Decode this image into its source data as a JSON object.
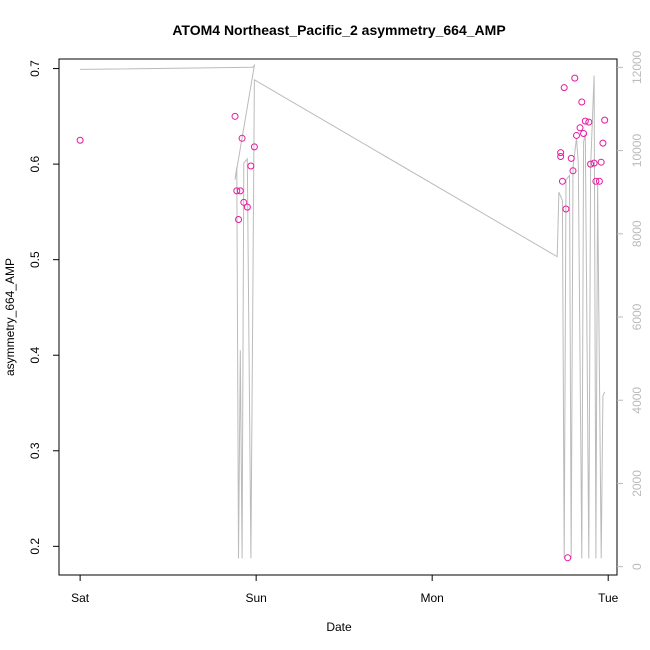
{
  "chart_data": {
    "type": "scatter",
    "title": "ATOM4 Northeast_Pacific_2 asymmetry_664_AMP",
    "xlabel": "Date",
    "ylabel": "asymmetry_664_AMP",
    "x_tick_labels": [
      "Sat",
      "Sun",
      "Mon",
      "Tue"
    ],
    "x_ticks_days": [
      0,
      1,
      2,
      3
    ],
    "xlim_days": [
      -0.12,
      3.05
    ],
    "ylim": [
      0.17,
      0.71
    ],
    "y_ticks": [
      0.2,
      0.3,
      0.4,
      0.5,
      0.6,
      0.7
    ],
    "y2lim": [
      -200,
      12200
    ],
    "y2_ticks": [
      0,
      2000,
      4000,
      6000,
      8000,
      10000,
      12000
    ],
    "colors": {
      "points": "#e6199e",
      "line": "#bbbbbb",
      "axis": "#000000"
    },
    "series": [
      {
        "type": "scatter",
        "x_days": [
          0.0,
          0.88,
          0.89,
          0.9,
          0.91,
          0.92,
          0.93,
          0.95,
          0.97,
          0.99,
          2.73,
          2.73,
          2.74,
          2.75,
          2.76,
          2.77,
          2.79,
          2.8,
          2.81,
          2.82,
          2.84,
          2.85,
          2.86,
          2.87,
          2.89,
          2.9,
          2.92,
          2.93,
          2.95,
          2.96,
          2.97,
          2.98
        ],
        "y": [
          0.625,
          0.65,
          0.572,
          0.542,
          0.572,
          0.627,
          0.56,
          0.555,
          0.598,
          0.618,
          0.608,
          0.612,
          0.582,
          0.68,
          0.553,
          0.188,
          0.606,
          0.593,
          0.69,
          0.63,
          0.638,
          0.665,
          0.632,
          0.645,
          0.644,
          0.6,
          0.601,
          0.582,
          0.582,
          0.602,
          0.622,
          0.646
        ]
      },
      {
        "type": "line",
        "axis": "right",
        "x_days": [
          0.0,
          0.98,
          0.99,
          0.88,
          0.89,
          0.9,
          0.91,
          0.92,
          0.93,
          0.95,
          0.97,
          0.99,
          2.71,
          2.72,
          2.74,
          2.75,
          2.76,
          2.78,
          2.79,
          2.8,
          2.82,
          2.83,
          2.85,
          2.86,
          2.87,
          2.89,
          2.9,
          2.92,
          2.93,
          2.94,
          2.96,
          2.97,
          2.98
        ],
        "y": [
          11950,
          12000,
          12050,
          9300,
          9600,
          200,
          5200,
          200,
          9700,
          9800,
          200,
          11700,
          7450,
          9000,
          8800,
          200,
          9300,
          9400,
          200,
          9600,
          10300,
          9700,
          200,
          10200,
          10400,
          200,
          9600,
          11800,
          200,
          9200,
          200,
          4100,
          4200
        ]
      }
    ]
  }
}
